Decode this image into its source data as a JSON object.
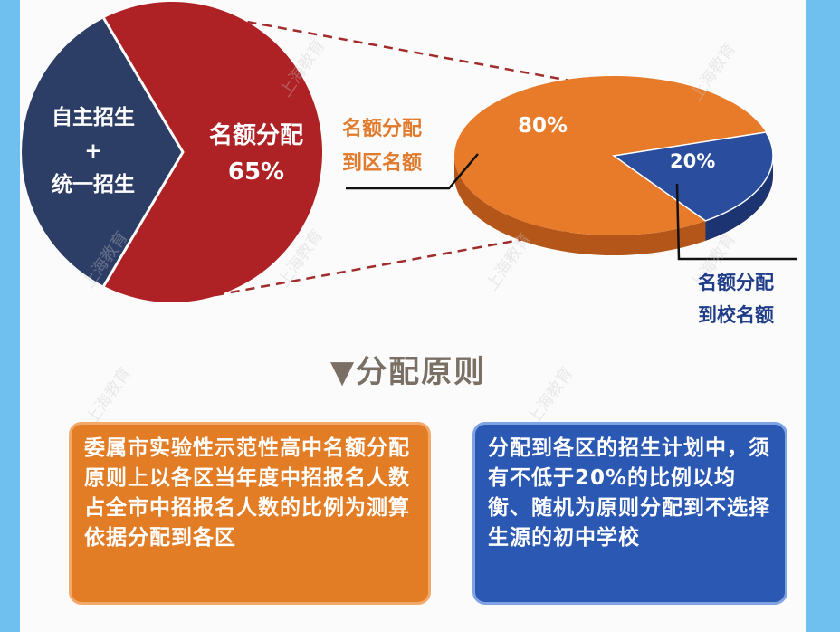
{
  "chart_data": [
    {
      "type": "pie",
      "categories": [
        "自主招生+统一招生",
        "名额分配"
      ],
      "values": [
        35,
        65
      ],
      "labels": [
        "自主招生\n+\n统一招生",
        "名额分配\n65%"
      ],
      "colors": [
        "#2d3e66",
        "#ae2125"
      ]
    },
    {
      "type": "pie",
      "categories": [
        "名额分配到区名额",
        "名额分配到校名额"
      ],
      "values": [
        80,
        20
      ],
      "labels": [
        "80%",
        "20%"
      ],
      "legend": [
        "名额分配\n到区名额",
        "名额分配\n到校名额"
      ],
      "colors": [
        "#e77b2a",
        "#2a4d9d"
      ]
    }
  ],
  "section_title": "▼分配原则",
  "boxes": {
    "left_text": "委属市实验性示范性高中名额分配原则上以各区当年度中招报名人数占全市中招报名人数的比例为测算依据分配到各区",
    "right_text": "分配到各区的招生计划中，须有不低于20%的比例以均衡、随机为原则分配到不选择生源的初中学校",
    "left_color": "#e27d26",
    "right_color": "#2b58b3"
  }
}
